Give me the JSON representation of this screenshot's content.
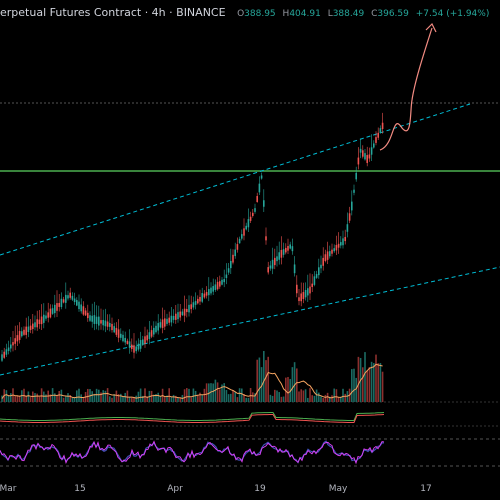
{
  "header": {
    "title": "erpetual Futures Contract · 4h · BINANCE",
    "open_label": "O",
    "open_value": "388.95",
    "high_label": "H",
    "high_value": "404.91",
    "low_label": "L",
    "low_value": "388.49",
    "close_label": "C",
    "close_value": "396.59",
    "change": "+7.54 (+1.94%)"
  },
  "colors": {
    "background": "#000000",
    "candle_up": "#26a69a",
    "candle_down": "#ef5350",
    "trend_channel": "#00bcd4",
    "horizontal_level": "#4caf50",
    "forecast_path": "#f28b82",
    "volume_ma": "#f4a460",
    "rsi_line": "#3f51b5",
    "rsi_signal": "#e040fb"
  },
  "x_axis": {
    "labels": [
      "Mar",
      "15",
      "Apr",
      "19",
      "May",
      "17"
    ]
  },
  "chart_data": {
    "type": "candlestick",
    "title": "",
    "symbol_suffix": "4h · BINANCE",
    "price_levels": {
      "horizontal_support": 318,
      "dotted_current": 396.59
    },
    "volume": {
      "type": "bar",
      "ma_shown": true
    },
    "indicators": [
      "volume",
      "macd-like oscillator",
      "rsi"
    ],
    "last_candle": {
      "open": 388.95,
      "high": 404.91,
      "low": 388.49,
      "close": 396.59,
      "change": 7.54,
      "change_pct": 1.94
    }
  }
}
